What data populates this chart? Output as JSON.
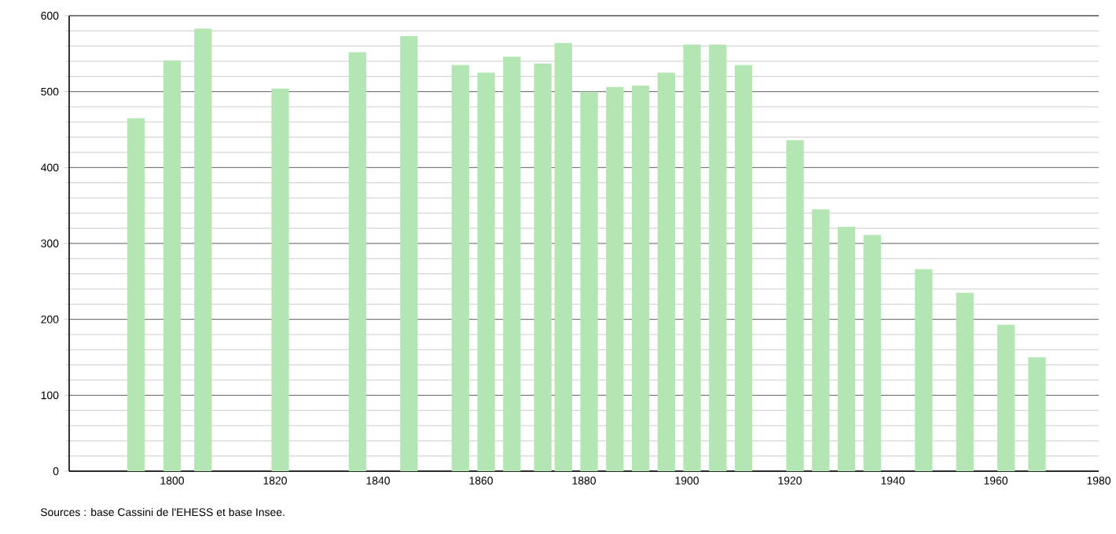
{
  "chart_data": {
    "type": "bar",
    "color": "#b3e6b3",
    "x": [
      1793,
      1800,
      1806,
      1821,
      1836,
      1846,
      1856,
      1861,
      1866,
      1872,
      1876,
      1881,
      1886,
      1891,
      1896,
      1901,
      1906,
      1911,
      1921,
      1926,
      1931,
      1936,
      1946,
      1954,
      1962,
      1968
    ],
    "values": [
      465,
      541,
      583,
      504,
      552,
      573,
      535,
      525,
      546,
      537,
      564,
      500,
      506,
      508,
      525,
      562,
      562,
      535,
      436,
      345,
      322,
      311,
      266,
      235,
      193,
      150
    ],
    "xlim": [
      1780,
      1980
    ],
    "xticks": [
      1800,
      1820,
      1840,
      1860,
      1880,
      1900,
      1920,
      1940,
      1960,
      1980
    ],
    "ylim": [
      0,
      600
    ],
    "yticks": [
      0,
      100,
      200,
      300,
      400,
      500,
      600
    ],
    "grid": "y",
    "annotations": [
      "Sources : base Cassini de l'EHESS et base Insee."
    ]
  }
}
